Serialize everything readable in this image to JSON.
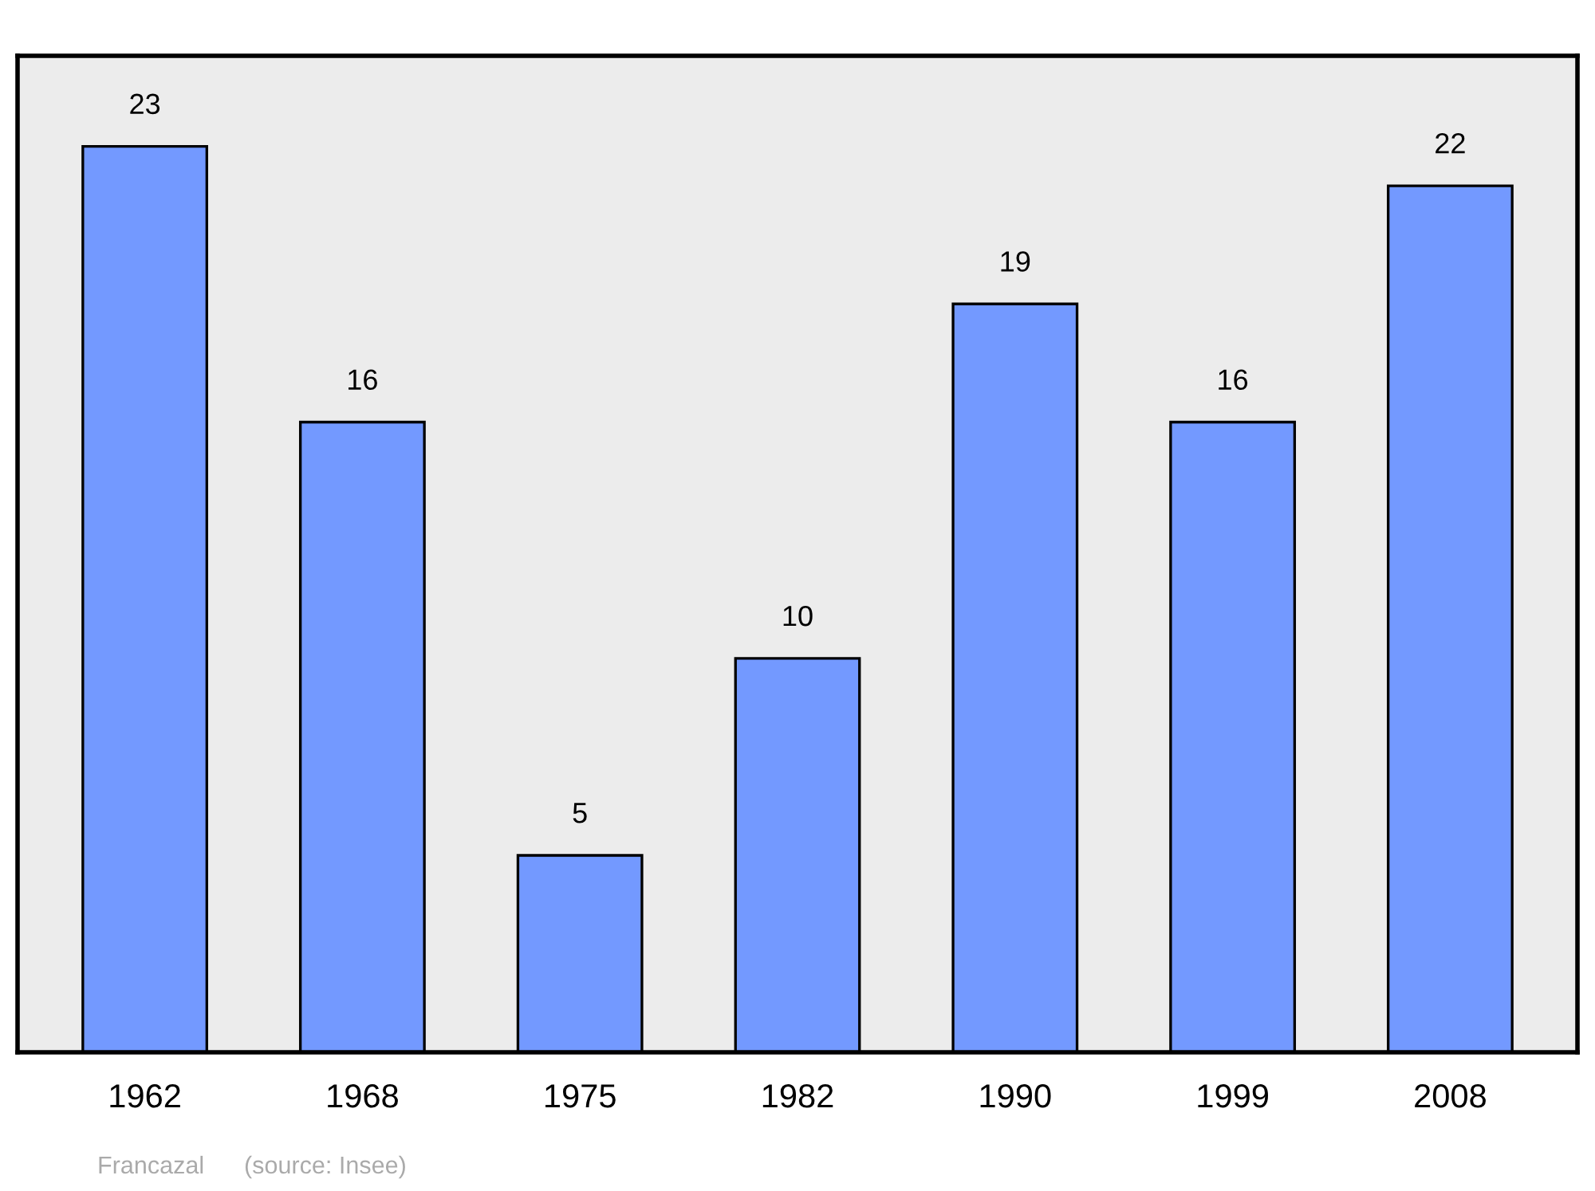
{
  "chart_data": {
    "type": "bar",
    "categories": [
      "1962",
      "1968",
      "1975",
      "1982",
      "1990",
      "1999",
      "2008"
    ],
    "values": [
      23,
      16,
      5,
      10,
      19,
      16,
      22
    ],
    "color": "#7399ff",
    "data_labels": true,
    "grid": false,
    "legend": false,
    "tick_labels": "x",
    "annotations": [
      "Francazal",
      "(source: Insee)"
    ]
  }
}
